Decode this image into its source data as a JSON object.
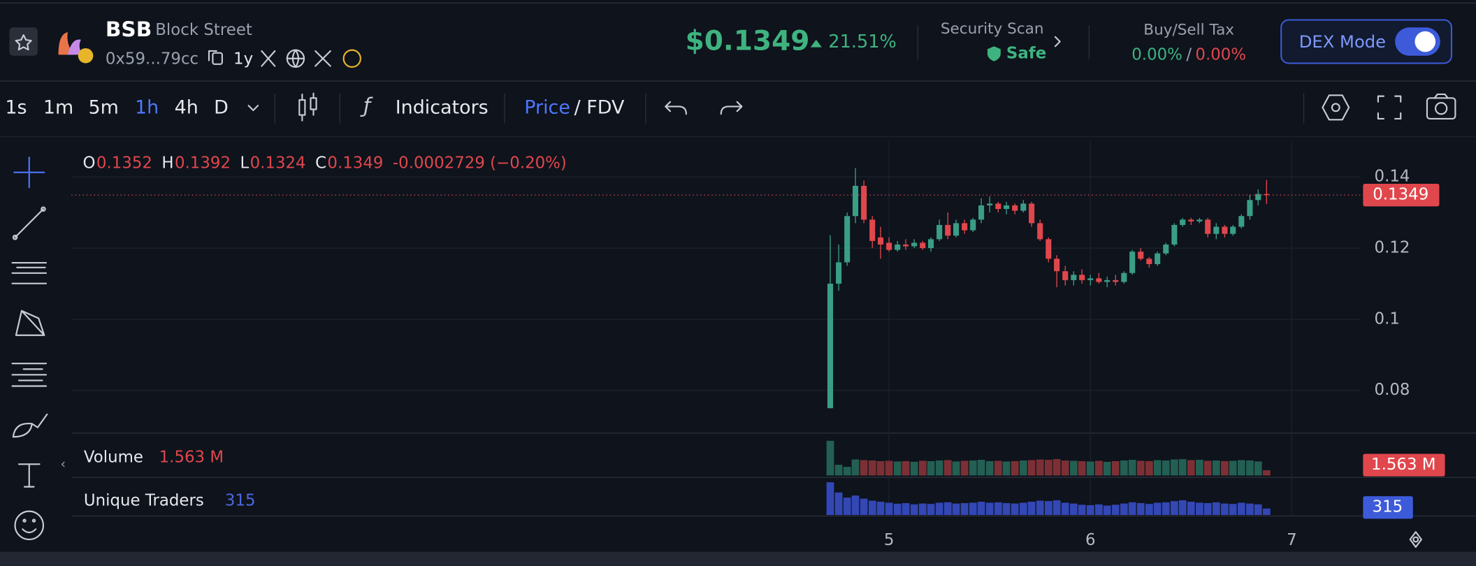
{
  "header": {
    "symbol": "BSB",
    "name": "Block Street",
    "address": "0x59...79cc",
    "age": "1y",
    "price": "$0.1349",
    "change": "21.51%",
    "security_label": "Security Scan",
    "security_status": "Safe",
    "tax_label": "Buy/Sell Tax",
    "buy_tax": "0.00%",
    "tax_separator": "/",
    "sell_tax": "0.00%",
    "mode_button": "DEX Mode"
  },
  "toolbar": {
    "intervals": [
      "1s",
      "1m",
      "5m",
      "1h",
      "4h",
      "D"
    ],
    "active_index": 3,
    "indicators": "Indicators",
    "price": "Price",
    "fdv": "/ FDV"
  },
  "chart_data": {
    "type": "candlestick",
    "legend": {
      "o": "O",
      "h": "H",
      "l": "L",
      "c": "C",
      "change": "-0.0002729 (−0.20%)"
    },
    "x": [
      4.708,
      4.75,
      4.792,
      4.833,
      4.875,
      4.917,
      4.958,
      5,
      5.042,
      5.083,
      5.125,
      5.167,
      5.208,
      5.25,
      5.292,
      5.333,
      5.375,
      5.417,
      5.458,
      5.5,
      5.542,
      5.583,
      5.625,
      5.667,
      5.708,
      5.75,
      5.792,
      5.833,
      5.875,
      5.917,
      5.958,
      6,
      6.042,
      6.083,
      6.125,
      6.167,
      6.208,
      6.25,
      6.292,
      6.333,
      6.375,
      6.417,
      6.458,
      6.5,
      6.542,
      6.583,
      6.625,
      6.667,
      6.708,
      6.75,
      6.792,
      6.833,
      6.875
    ],
    "xlim": [
      0.94,
      7.34
    ],
    "xticks": [
      5,
      6,
      7
    ],
    "open": [
      0.075,
      0.11,
      0.116,
      0.129,
      0.1375,
      0.128,
      0.123,
      0.1215,
      0.1195,
      0.121,
      0.1205,
      0.1215,
      0.12,
      0.1225,
      0.1265,
      0.1235,
      0.127,
      0.125,
      0.128,
      0.132,
      0.1325,
      0.131,
      0.132,
      0.1305,
      0.1325,
      0.127,
      0.1225,
      0.117,
      0.1135,
      0.111,
      0.1125,
      0.111,
      0.1115,
      0.1105,
      0.111,
      0.1105,
      0.113,
      0.119,
      0.117,
      0.1155,
      0.1185,
      0.121,
      0.1265,
      0.128,
      0.1275,
      0.128,
      0.124,
      0.126,
      0.124,
      0.126,
      0.129,
      0.1335,
      0.1352
    ],
    "high": [
      0.1236,
      0.121,
      0.13,
      0.1425,
      0.139,
      0.129,
      0.126,
      0.123,
      0.122,
      0.1225,
      0.1225,
      0.122,
      0.123,
      0.128,
      0.13,
      0.128,
      0.128,
      0.1285,
      0.134,
      0.1345,
      0.133,
      0.133,
      0.1325,
      0.1335,
      0.133,
      0.128,
      0.123,
      0.118,
      0.115,
      0.1135,
      0.114,
      0.1125,
      0.113,
      0.112,
      0.1125,
      0.1135,
      0.1195,
      0.12,
      0.1175,
      0.119,
      0.1215,
      0.127,
      0.1285,
      0.1285,
      0.1285,
      0.1285,
      0.127,
      0.1265,
      0.1265,
      0.1295,
      0.135,
      0.1365,
      0.1392
    ],
    "low": [
      0.075,
      0.108,
      0.115,
      0.127,
      0.127,
      0.12,
      0.117,
      0.119,
      0.119,
      0.1195,
      0.12,
      0.1195,
      0.119,
      0.122,
      0.1225,
      0.123,
      0.124,
      0.1245,
      0.127,
      0.13,
      0.13,
      0.1295,
      0.1295,
      0.13,
      0.126,
      0.122,
      0.116,
      0.109,
      0.1095,
      0.1095,
      0.11,
      0.1095,
      0.11,
      0.109,
      0.1095,
      0.11,
      0.1125,
      0.1165,
      0.1145,
      0.115,
      0.118,
      0.1205,
      0.126,
      0.1265,
      0.127,
      0.123,
      0.1225,
      0.123,
      0.1235,
      0.1255,
      0.128,
      0.132,
      0.1324
    ],
    "close": [
      0.11,
      0.116,
      0.129,
      0.1375,
      0.128,
      0.122,
      0.121,
      0.1195,
      0.121,
      0.1205,
      0.1215,
      0.12,
      0.1225,
      0.1265,
      0.1235,
      0.127,
      0.125,
      0.128,
      0.132,
      0.1325,
      0.131,
      0.132,
      0.1305,
      0.1325,
      0.127,
      0.1225,
      0.117,
      0.1135,
      0.111,
      0.1125,
      0.111,
      0.1115,
      0.1105,
      0.111,
      0.1105,
      0.113,
      0.119,
      0.117,
      0.1155,
      0.1185,
      0.121,
      0.1265,
      0.128,
      0.1275,
      0.128,
      0.124,
      0.126,
      0.124,
      0.126,
      0.129,
      0.1335,
      0.1352,
      0.1349
    ],
    "up_color": "#3a9e87",
    "down_color": "#e0474c",
    "ylim": [
      0.068,
      0.15
    ],
    "yticks": [
      0.14,
      0.12,
      0.1,
      0.08
    ],
    "grid": true,
    "volume": {
      "name": "Volume",
      "current_label": "1.563 M",
      "up_color": "#235f53",
      "down_color": "#7c3035",
      "ylim": [
        0,
        11
      ],
      "values": [
        10.4,
        3.2,
        2.6,
        4.8,
        4.6,
        4.5,
        4.3,
        4.4,
        4.2,
        4.3,
        4.1,
        4.4,
        4.3,
        4.5,
        4.6,
        4.2,
        4.4,
        4.5,
        4.7,
        4.3,
        4.4,
        4.2,
        4.3,
        4.5,
        4.6,
        4.8,
        4.7,
        4.9,
        4.5,
        4.4,
        4.3,
        4.2,
        4.4,
        4.1,
        4.3,
        4.5,
        4.7,
        4.4,
        4.3,
        4.6,
        4.5,
        4.8,
        4.9,
        4.6,
        4.7,
        4.4,
        4.5,
        4.3,
        4.4,
        4.6,
        4.5,
        4.2,
        1.563
      ]
    },
    "traders": {
      "name": "Unique Traders",
      "color": "#3347b5",
      "ylim": [
        0,
        1700
      ],
      "values": [
        1600,
        1100,
        850,
        950,
        800,
        700,
        650,
        600,
        550,
        580,
        520,
        560,
        540,
        600,
        620,
        560,
        580,
        600,
        650,
        600,
        620,
        580,
        560,
        600,
        650,
        700,
        680,
        720,
        600,
        560,
        500,
        480,
        520,
        460,
        500,
        560,
        620,
        580,
        540,
        600,
        620,
        680,
        720,
        650,
        600,
        580,
        620,
        560,
        540,
        600,
        560,
        520,
        315
      ]
    }
  }
}
